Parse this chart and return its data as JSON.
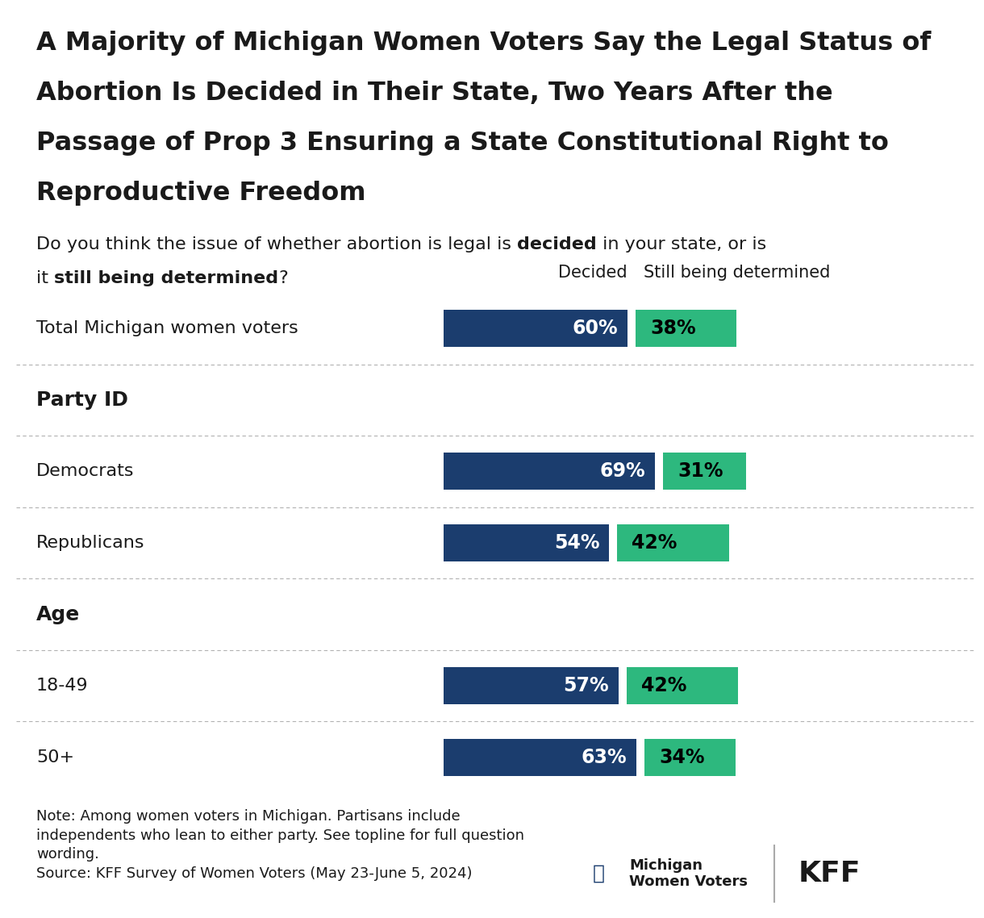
{
  "title_line1": "A Majority of Michigan Women Voters Say the Legal Status of",
  "title_line2": "Abortion Is Decided in Their State, Two Years After the",
  "title_line3": "Passage of Prop 3 Ensuring a State Constitutional Right to",
  "title_line4": "Reproductive Freedom",
  "col_header_decided": "Decided",
  "col_header_still": "Still being determined",
  "categories": [
    "Total Michigan women voters",
    "Party ID",
    "Democrats",
    "Republicans",
    "Age",
    "18-49",
    "50+"
  ],
  "is_header": [
    false,
    true,
    false,
    false,
    true,
    false,
    false
  ],
  "decided_values": [
    60,
    null,
    69,
    54,
    null,
    57,
    63
  ],
  "still_values": [
    38,
    null,
    31,
    42,
    null,
    42,
    34
  ],
  "decided_color": "#1b3d6e",
  "still_color": "#2db87e",
  "bar_text_color_decided": "#ffffff",
  "bar_text_color_still": "#000000",
  "background_color": "#ffffff",
  "text_color": "#1a1a1a",
  "separator_color": "#aaaaaa",
  "note_text": "Note: Among women voters in Michigan. Partisans include\nindependents who lean to either party. See topline for full question\nwording.\nSource: KFF Survey of Women Voters (May 23-June 5, 2024)",
  "title_fontsize": 23,
  "subtitle_fontsize": 16,
  "label_fontsize": 16,
  "bar_label_fontsize": 17,
  "col_header_fontsize": 15,
  "note_fontsize": 13,
  "header_fontsize": 18
}
